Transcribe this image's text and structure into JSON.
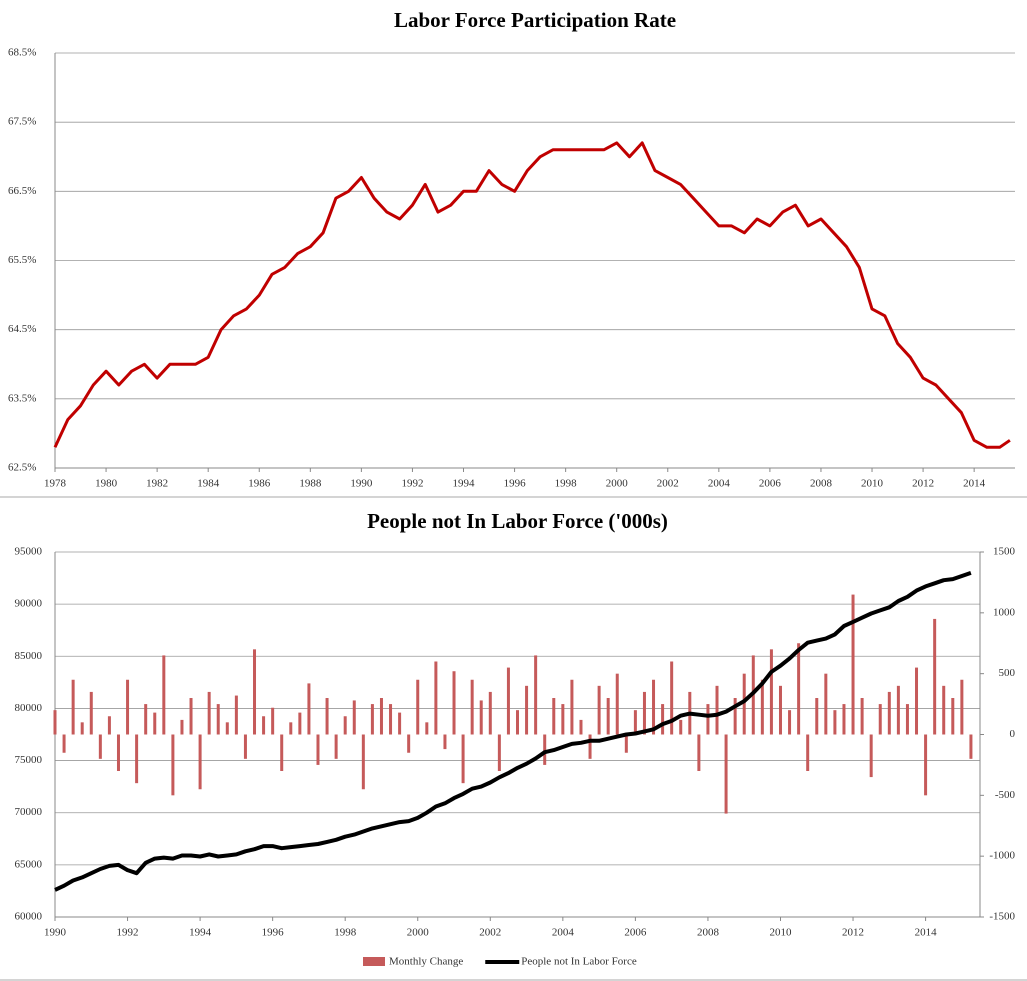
{
  "chart_data": [
    {
      "type": "line",
      "title": "Labor Force Participation Rate",
      "color": "#c00000",
      "grid": true,
      "x": [
        1978.0,
        1978.5,
        1979.0,
        1979.5,
        1980.0,
        1980.5,
        1981.0,
        1981.5,
        1982.0,
        1982.5,
        1983.0,
        1983.5,
        1984.0,
        1984.5,
        1985.0,
        1985.5,
        1986.0,
        1986.5,
        1987.0,
        1987.5,
        1988.0,
        1988.5,
        1989.0,
        1989.5,
        1990.0,
        1990.5,
        1991.0,
        1991.5,
        1992.0,
        1992.5,
        1993.0,
        1993.5,
        1994.0,
        1994.5,
        1995.0,
        1995.5,
        1996.0,
        1996.5,
        1997.0,
        1997.5,
        1998.0,
        1998.5,
        1999.0,
        1999.5,
        2000.0,
        2000.5,
        2001.0,
        2001.5,
        2002.0,
        2002.5,
        2003.0,
        2003.5,
        2004.0,
        2004.5,
        2005.0,
        2005.5,
        2006.0,
        2006.5,
        2007.0,
        2007.5,
        2008.0,
        2008.5,
        2009.0,
        2009.5,
        2010.0,
        2010.5,
        2011.0,
        2011.5,
        2012.0,
        2012.5,
        2013.0,
        2013.5,
        2014.0,
        2014.5,
        2015.0,
        2015.4
      ],
      "values": [
        62.8,
        63.2,
        63.4,
        63.7,
        63.9,
        63.7,
        63.9,
        64.0,
        63.8,
        64.0,
        64.0,
        64.0,
        64.1,
        64.5,
        64.7,
        64.8,
        65.0,
        65.3,
        65.4,
        65.6,
        65.7,
        65.9,
        66.4,
        66.5,
        66.7,
        66.4,
        66.2,
        66.1,
        66.3,
        66.6,
        66.2,
        66.3,
        66.5,
        66.5,
        66.8,
        66.6,
        66.5,
        66.8,
        67.0,
        67.1,
        67.1,
        67.1,
        67.1,
        67.1,
        67.2,
        67.0,
        67.2,
        66.8,
        66.7,
        66.6,
        66.4,
        66.2,
        66.0,
        66.0,
        65.9,
        66.1,
        66.0,
        66.2,
        66.3,
        66.0,
        66.1,
        65.9,
        65.7,
        65.4,
        64.8,
        64.7,
        64.3,
        64.1,
        63.8,
        63.7,
        63.5,
        63.3,
        62.9,
        62.8,
        62.8,
        62.9
      ],
      "xlim": [
        1978,
        2015.6
      ],
      "xticks": [
        1978,
        1980,
        1982,
        1984,
        1986,
        1988,
        1990,
        1992,
        1994,
        1996,
        1998,
        2000,
        2002,
        2004,
        2006,
        2008,
        2010,
        2012,
        2014
      ],
      "ylim": [
        62.5,
        68.5
      ],
      "yticks": [
        {
          "value": 62.5,
          "label": "62.5%"
        },
        {
          "value": 63.5,
          "label": "63.5%"
        },
        {
          "value": 64.5,
          "label": "64.5%"
        },
        {
          "value": 65.5,
          "label": "65.5%"
        },
        {
          "value": 66.5,
          "label": "66.5%"
        },
        {
          "value": 67.5,
          "label": "67.5%"
        },
        {
          "value": 68.5,
          "label": "68.5%"
        }
      ]
    },
    {
      "type": "combo",
      "title": "People not In Labor Force ('000s)",
      "grid": true,
      "legend": "bottom",
      "x": [
        1990.0,
        1990.25,
        1990.5,
        1990.75,
        1991.0,
        1991.25,
        1991.5,
        1991.75,
        1992.0,
        1992.25,
        1992.5,
        1992.75,
        1993.0,
        1993.25,
        1993.5,
        1993.75,
        1994.0,
        1994.25,
        1994.5,
        1994.75,
        1995.0,
        1995.25,
        1995.5,
        1995.75,
        1996.0,
        1996.25,
        1996.5,
        1996.75,
        1997.0,
        1997.25,
        1997.5,
        1997.75,
        1998.0,
        1998.25,
        1998.5,
        1998.75,
        1999.0,
        1999.25,
        1999.5,
        1999.75,
        2000.0,
        2000.25,
        2000.5,
        2000.75,
        2001.0,
        2001.25,
        2001.5,
        2001.75,
        2002.0,
        2002.25,
        2002.5,
        2002.75,
        2003.0,
        2003.25,
        2003.5,
        2003.75,
        2004.0,
        2004.25,
        2004.5,
        2004.75,
        2005.0,
        2005.25,
        2005.5,
        2005.75,
        2006.0,
        2006.25,
        2006.5,
        2006.75,
        2007.0,
        2007.25,
        2007.5,
        2007.75,
        2008.0,
        2008.25,
        2008.5,
        2008.75,
        2009.0,
        2009.25,
        2009.5,
        2009.75,
        2010.0,
        2010.25,
        2010.5,
        2010.75,
        2011.0,
        2011.25,
        2011.5,
        2011.75,
        2012.0,
        2012.25,
        2012.5,
        2012.75,
        2013.0,
        2013.25,
        2013.5,
        2013.75,
        2014.0,
        2014.25,
        2014.5,
        2014.75,
        2015.0,
        2015.25
      ],
      "series": [
        {
          "name": "Monthly Change",
          "type": "bar",
          "axis": "y2",
          "color": "#c55a5a",
          "values": [
            200,
            -150,
            450,
            100,
            350,
            -200,
            150,
            -300,
            450,
            -400,
            250,
            180,
            650,
            -500,
            120,
            300,
            -450,
            350,
            250,
            100,
            320,
            -200,
            700,
            150,
            220,
            -300,
            100,
            180,
            420,
            -250,
            300,
            -200,
            150,
            280,
            -450,
            250,
            300,
            250,
            180,
            -150,
            450,
            100,
            600,
            -120,
            520,
            -400,
            450,
            280,
            350,
            -300,
            550,
            200,
            400,
            650,
            -250,
            300,
            250,
            450,
            120,
            -200,
            400,
            300,
            500,
            -150,
            200,
            350,
            450,
            250,
            600,
            120,
            350,
            -300,
            250,
            400,
            -650,
            300,
            500,
            650,
            450,
            700,
            400,
            200,
            750,
            -300,
            300,
            500,
            200,
            250,
            1150,
            300,
            -350,
            250,
            350,
            400,
            250,
            550,
            -500,
            950,
            400,
            300,
            450,
            -200
          ]
        },
        {
          "name": "People not In Labor Force",
          "type": "line",
          "color": "#000000",
          "values": [
            62600,
            63000,
            63500,
            63800,
            64200,
            64600,
            64900,
            65000,
            64500,
            64200,
            65200,
            65600,
            65700,
            65600,
            65900,
            65900,
            65800,
            66000,
            65800,
            65900,
            66000,
            66300,
            66500,
            66800,
            66800,
            66600,
            66700,
            66800,
            66900,
            67000,
            67200,
            67400,
            67700,
            67900,
            68200,
            68500,
            68700,
            68900,
            69100,
            69200,
            69500,
            70000,
            70600,
            70900,
            71400,
            71800,
            72300,
            72500,
            72900,
            73400,
            73800,
            74300,
            74700,
            75200,
            75800,
            76000,
            76300,
            76600,
            76700,
            76900,
            76900,
            77100,
            77300,
            77500,
            77600,
            77800,
            78000,
            78500,
            78800,
            79300,
            79500,
            79400,
            79300,
            79400,
            79700,
            80200,
            80700,
            81500,
            82400,
            83500,
            84100,
            84800,
            85600,
            86300,
            86500,
            86700,
            87100,
            87900,
            88300,
            88700,
            89100,
            89400,
            89700,
            90300,
            90700,
            91300,
            91700,
            92000,
            92300,
            92400,
            92700,
            93000
          ]
        }
      ],
      "xlim": [
        1990,
        2015.5
      ],
      "xticks": [
        1990,
        1992,
        1994,
        1996,
        1998,
        2000,
        2002,
        2004,
        2006,
        2008,
        2010,
        2012,
        2014
      ],
      "ylim": [
        60000,
        95000
      ],
      "yticks": [
        60000,
        65000,
        70000,
        75000,
        80000,
        85000,
        90000,
        95000
      ],
      "y2lim": [
        -1500,
        1500
      ],
      "y2ticks": [
        -1500,
        -1000,
        -500,
        0,
        500,
        1000,
        1500
      ]
    }
  ]
}
